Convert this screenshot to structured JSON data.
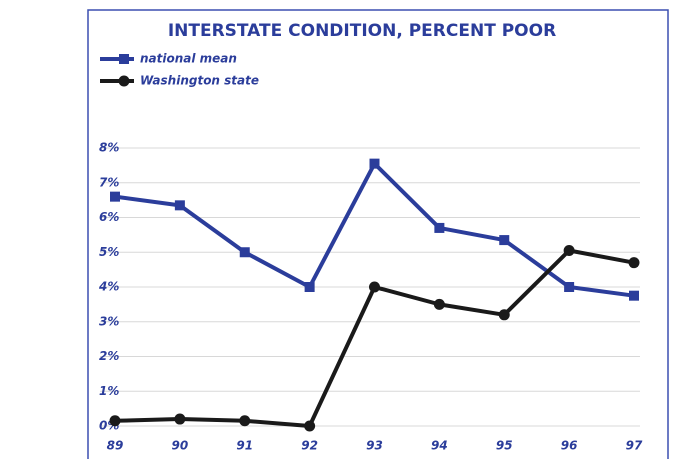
{
  "chart_data": {
    "type": "line",
    "title": "INTERSTATE CONDITION, PERCENT POOR",
    "categories": [
      "89",
      "90",
      "91",
      "92",
      "93",
      "94",
      "95",
      "96",
      "97"
    ],
    "series": [
      {
        "name": "national mean",
        "color": "#2b3d9b",
        "marker": "square",
        "values": [
          6.6,
          6.35,
          5.0,
          4.0,
          7.55,
          5.7,
          5.35,
          4.0,
          3.75
        ]
      },
      {
        "name": "Washington state",
        "color": "#1a1a1a",
        "marker": "circle",
        "values": [
          0.15,
          0.2,
          0.15,
          0.0,
          4.0,
          3.5,
          3.2,
          5.05,
          4.7
        ]
      }
    ],
    "ylim": [
      0,
      8
    ],
    "yticks": [
      {
        "value": 0,
        "label": "0%"
      },
      {
        "value": 1,
        "label": "1%"
      },
      {
        "value": 2,
        "label": "2%"
      },
      {
        "value": 3,
        "label": "3%"
      },
      {
        "value": 4,
        "label": "4%"
      },
      {
        "value": 5,
        "label": "5%"
      },
      {
        "value": 6,
        "label": "6%"
      },
      {
        "value": 7,
        "label": "7%"
      },
      {
        "value": 8,
        "label": "8%"
      }
    ],
    "grid": true,
    "legend": "top-left"
  }
}
